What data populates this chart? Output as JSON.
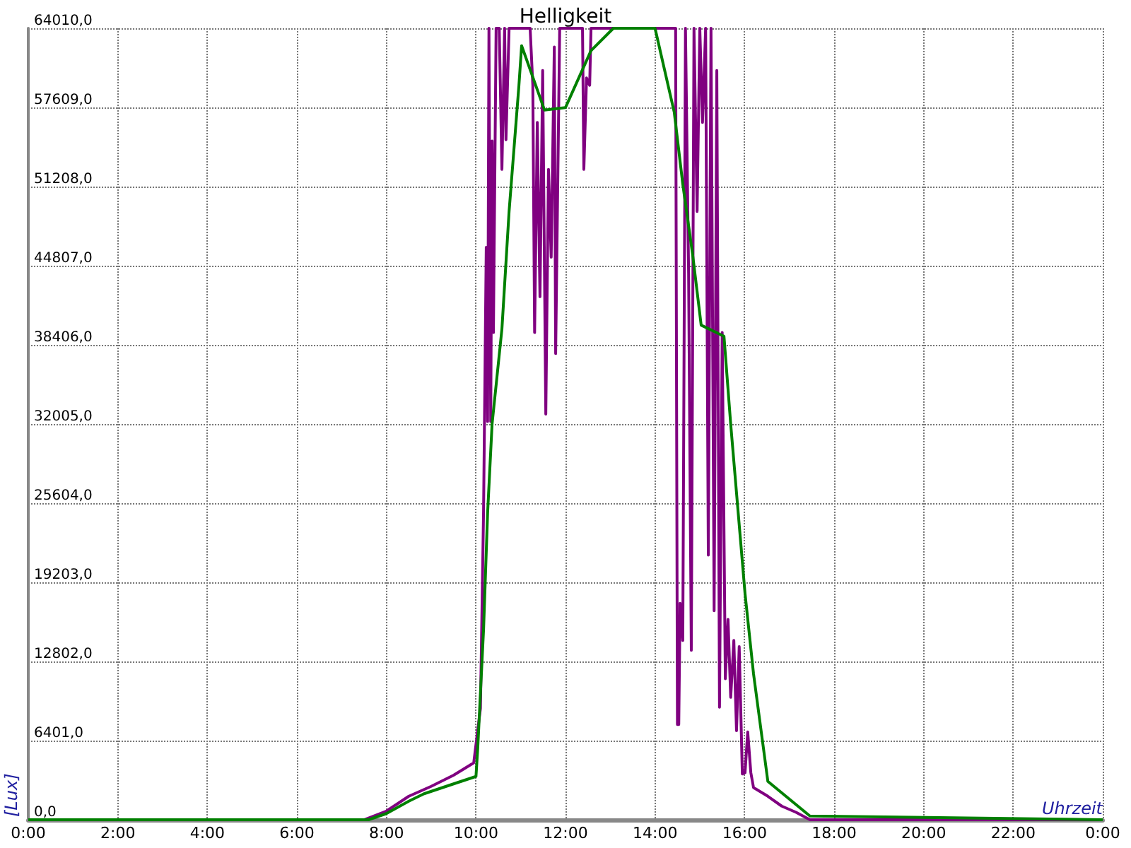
{
  "chart_data": {
    "type": "line",
    "title": "Helligkeit",
    "xlabel": "Uhrzeit",
    "ylabel": "[Lux]",
    "xlim": [
      0,
      24
    ],
    "xticks": [
      {
        "value": 0,
        "label": "0:00"
      },
      {
        "value": 2,
        "label": "2:00"
      },
      {
        "value": 4,
        "label": "4:00"
      },
      {
        "value": 6,
        "label": "6:00"
      },
      {
        "value": 8,
        "label": "8:00"
      },
      {
        "value": 10,
        "label": "10:00"
      },
      {
        "value": 12,
        "label": "12:00"
      },
      {
        "value": 14,
        "label": "14:00"
      },
      {
        "value": 16,
        "label": "16:00"
      },
      {
        "value": 18,
        "label": "18:00"
      },
      {
        "value": 20,
        "label": "20:00"
      },
      {
        "value": 22,
        "label": "22:00"
      },
      {
        "value": 24,
        "label": "0:00"
      }
    ],
    "ylim": [
      0,
      64010
    ],
    "yticks": [
      {
        "value": 0,
        "label": "0,0"
      },
      {
        "value": 6401,
        "label": "6401,0"
      },
      {
        "value": 12802,
        "label": "12802,0"
      },
      {
        "value": 19203,
        "label": "19203,0"
      },
      {
        "value": 25604,
        "label": "25604,0"
      },
      {
        "value": 32005,
        "label": "32005,0"
      },
      {
        "value": 38406,
        "label": "38406,0"
      },
      {
        "value": 44807,
        "label": "44807,0"
      },
      {
        "value": 51208,
        "label": "51208,0"
      },
      {
        "value": 57609,
        "label": "57609,0"
      },
      {
        "value": 64010,
        "label": "64010,0"
      }
    ],
    "grid": true,
    "marker": "none",
    "line_style": "solid",
    "series": [
      {
        "color": "#800080",
        "x": [
          0,
          7.5,
          8.0,
          8.5,
          9.0,
          9.5,
          9.95,
          10.1,
          10.17,
          10.23,
          10.26,
          10.29,
          10.33,
          10.36,
          10.39,
          10.45,
          10.52,
          10.58,
          10.64,
          10.67,
          10.74,
          11.21,
          11.27,
          11.31,
          11.37,
          11.43,
          11.49,
          11.56,
          11.62,
          11.68,
          11.75,
          11.78,
          11.87,
          12.38,
          12.41,
          12.47,
          12.54,
          12.57,
          13.99,
          14.46,
          14.5,
          14.53,
          14.56,
          14.62,
          14.68,
          14.75,
          14.81,
          14.87,
          14.94,
          15.0,
          15.06,
          15.13,
          15.19,
          15.25,
          15.32,
          15.38,
          15.44,
          15.5,
          15.57,
          15.63,
          15.69,
          15.76,
          15.82,
          15.88,
          15.95,
          16.01,
          16.07,
          16.14,
          16.2,
          16.52,
          16.83,
          17.15,
          17.46,
          24
        ],
        "values": [
          0,
          0,
          700,
          1900,
          2700,
          3600,
          4600,
          9000,
          25000,
          46300,
          32200,
          64010,
          32200,
          54900,
          39400,
          64010,
          64010,
          52600,
          64010,
          55000,
          64010,
          64010,
          59400,
          39400,
          56400,
          42300,
          60600,
          32800,
          52600,
          45500,
          62500,
          37700,
          64010,
          64010,
          52600,
          60000,
          59400,
          64010,
          64010,
          64010,
          7700,
          7700,
          17500,
          14500,
          64010,
          44200,
          13700,
          64010,
          49200,
          64010,
          56400,
          64010,
          21400,
          64010,
          16900,
          60600,
          9100,
          39400,
          11400,
          16200,
          9900,
          14500,
          7200,
          14000,
          3700,
          3800,
          7100,
          3800,
          2600,
          1900,
          1100,
          600,
          0,
          0
        ]
      },
      {
        "color": "#008000",
        "x": [
          0,
          7.6,
          8.0,
          8.5,
          8.84,
          9.5,
          10.0,
          10.04,
          10.17,
          10.26,
          10.36,
          10.58,
          10.74,
          10.96,
          11.02,
          11.53,
          12.0,
          12.57,
          13.07,
          14.0,
          14.43,
          14.62,
          14.84,
          15.03,
          15.54,
          15.69,
          16.01,
          16.2,
          16.52,
          17.46,
          24
        ],
        "values": [
          0,
          0,
          500,
          1500,
          2100,
          2900,
          3500,
          5800,
          15400,
          24800,
          32000,
          39700,
          49200,
          59400,
          62600,
          57400,
          57600,
          62200,
          64010,
          64010,
          57200,
          51400,
          45700,
          40000,
          39100,
          32000,
          18300,
          11800,
          3100,
          300,
          0
        ]
      }
    ]
  }
}
